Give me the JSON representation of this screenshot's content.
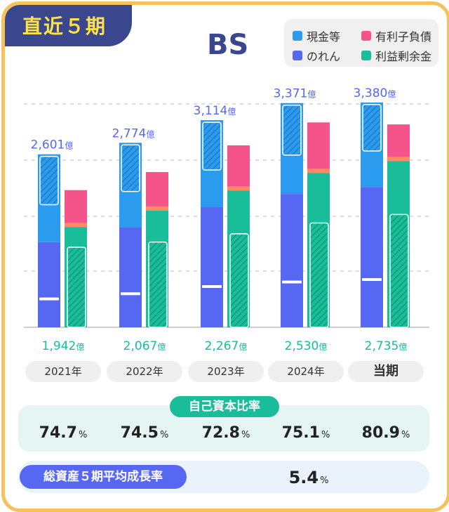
{
  "badge": "直近５期",
  "chart_data": {
    "type": "bar",
    "title": "BS",
    "categories": [
      "2021年",
      "2022年",
      "2023年",
      "2024年",
      "当期"
    ],
    "unit": "億",
    "ylim": [
      0,
      3400
    ],
    "grid": true,
    "legend_position": "top-right",
    "totals_assets": [
      2601,
      2774,
      3114,
      3371,
      3380
    ],
    "totals_equity": [
      1942,
      2067,
      2267,
      2530,
      2735
    ],
    "asset_series": [
      {
        "name": "のれん",
        "values": [
          1280,
          1500,
          1810,
          2005,
          2110
        ]
      },
      {
        "name": "現金等",
        "values": [
          1321,
          1274,
          1304,
          1366,
          1270
        ]
      }
    ],
    "liability_series": [
      {
        "name": "利益剰余金",
        "values": [
          1507,
          1754,
          2055,
          2320,
          2500
        ]
      },
      {
        "name": "有利子負債",
        "values": [
          555,
          580,
          680,
          760,
          550
        ]
      }
    ],
    "colors": {
      "現金等": "#2b9bf0",
      "有利子負債": "#f5548a",
      "のれん": "#5668f2",
      "利益剰余金": "#19bd9a"
    }
  },
  "ratio": {
    "title": "自己資本比率",
    "values": [
      "74.7",
      "74.5",
      "72.8",
      "75.1",
      "80.9"
    ],
    "unit": "%"
  },
  "growth": {
    "title": "総資産５期平均成長率",
    "value": "5.4",
    "unit": "%"
  }
}
